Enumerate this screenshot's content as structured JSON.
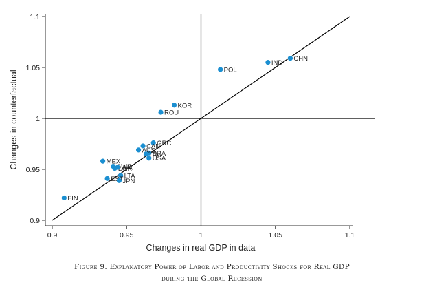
{
  "chart_data": {
    "type": "scatter",
    "xlabel": "Changes in real GDP in data",
    "ylabel": "Changes in counterfactual",
    "xlim": [
      0.9,
      1.1
    ],
    "ylim": [
      0.9,
      1.1
    ],
    "x_ticks": [
      "0.9",
      "0.95",
      "1",
      "1.05",
      "1.1"
    ],
    "y_ticks": [
      "0.9",
      "0.95",
      "1",
      "1.05",
      "1.1"
    ],
    "reference_lines": {
      "vertical": 1.0,
      "horizontal": 1.0,
      "diagonal": "45-degree"
    },
    "point_color": "#1b8fd1",
    "points": [
      {
        "label": "CHN",
        "x": 1.06,
        "y": 1.059
      },
      {
        "label": "IND",
        "x": 1.045,
        "y": 1.055
      },
      {
        "label": "POL",
        "x": 1.013,
        "y": 1.048
      },
      {
        "label": "KOR",
        "x": 0.982,
        "y": 1.013
      },
      {
        "label": "ROU",
        "x": 0.973,
        "y": 1.006
      },
      {
        "label": "GRC",
        "x": 0.968,
        "y": 0.976
      },
      {
        "label": "CAN",
        "x": 0.961,
        "y": 0.973
      },
      {
        "label": "BRA",
        "x": 0.965,
        "y": 0.966
      },
      {
        "label": "AUS",
        "x": 0.958,
        "y": 0.969
      },
      {
        "label": "ITA",
        "x": 0.963,
        "y": 0.965
      },
      {
        "label": "USA",
        "x": 0.965,
        "y": 0.961
      },
      {
        "label": "MEX",
        "x": 0.934,
        "y": 0.958
      },
      {
        "label": "SWE",
        "x": 0.941,
        "y": 0.953
      },
      {
        "label": "DNK",
        "x": 0.942,
        "y": 0.951
      },
      {
        "label": "LVA",
        "x": 0.944,
        "y": 0.952
      },
      {
        "label": "LTA",
        "x": 0.946,
        "y": 0.944
      },
      {
        "label": "EST",
        "x": 0.937,
        "y": 0.941
      },
      {
        "label": "JPN",
        "x": 0.945,
        "y": 0.939
      },
      {
        "label": "FIN",
        "x": 0.908,
        "y": 0.922
      }
    ]
  },
  "caption": {
    "line1": "Figure 9. Explanatory Power of Labor and Productivity Shocks for Real GDP",
    "line2": "during the Global Recession"
  }
}
